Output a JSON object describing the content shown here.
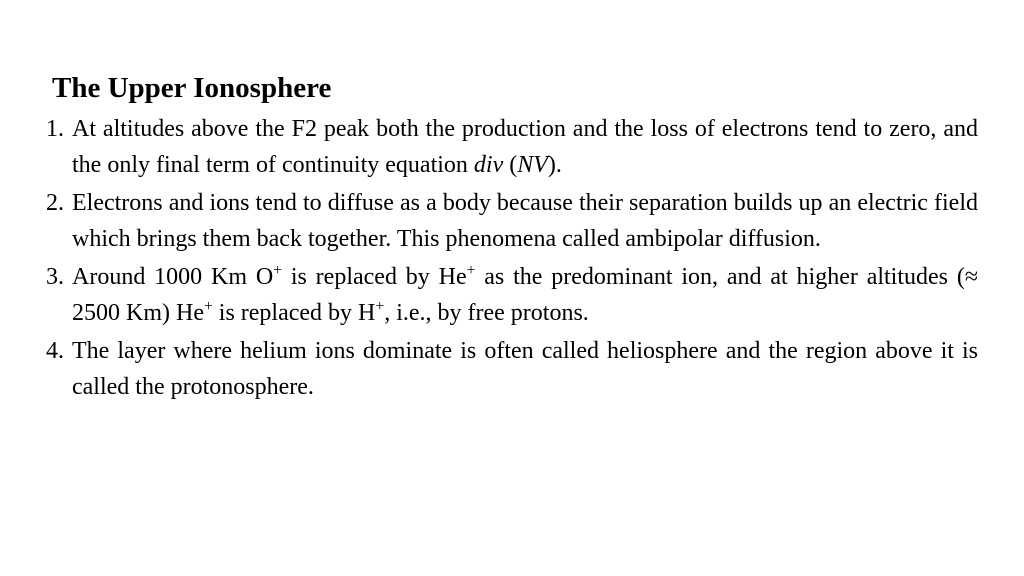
{
  "document": {
    "title": "The Upper Ionosphere",
    "title_fontsize": 29,
    "title_weight": "bold",
    "body_fontsize": 24,
    "line_height": 1.5,
    "text_color": "#000000",
    "background_color": "#ffffff",
    "font_family": "Times New Roman",
    "items": [
      {
        "html": "At altitudes above the F2 peak both the production and the loss of electrons tend to zero, and the only final term of continuity equation <span class=\"math\">div</span> (<span class=\"math\">NV</span>)."
      },
      {
        "html": "Electrons and ions tend to diffuse as a body because their separation builds up an electric field which brings them back together. This phenomena called ambipolar diffusion."
      },
      {
        "html": "Around 1000 Km O<sup>+</sup> is replaced by He<sup>+</sup> as the predominant ion, and at higher altitudes (≈ 2500 Km) He<sup>+</sup> is replaced by H<sup>+</sup>, i.e., by free protons."
      },
      {
        "html": "The layer where helium ions dominate is often called heliosphere and the region above it is called the protonosphere."
      }
    ]
  }
}
